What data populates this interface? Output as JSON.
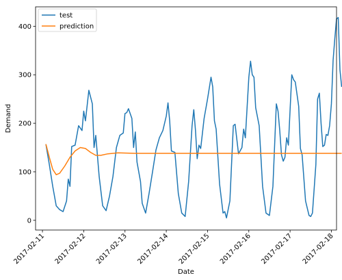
{
  "chart_data": {
    "type": "line",
    "xlabel": "Date",
    "ylabel": "Demand",
    "xlim": [
      "2017-02-10T20:00",
      "2017-02-18T03:00"
    ],
    "ylim": [
      -20,
      440
    ],
    "x_ticks": [
      "2017-02-11",
      "2017-02-12",
      "2017-02-13",
      "2017-02-14",
      "2017-02-15",
      "2017-02-16",
      "2017-02-17",
      "2017-02-18"
    ],
    "y_ticks": [
      0,
      100,
      200,
      300,
      400
    ],
    "grid": false,
    "legend_position": "top-left",
    "series": [
      {
        "name": "test",
        "color": "#1f77b4",
        "points": [
          [
            "2017-02-11T02:00",
            157
          ],
          [
            "2017-02-11T04:00",
            115
          ],
          [
            "2017-02-11T06:00",
            70
          ],
          [
            "2017-02-11T08:00",
            30
          ],
          [
            "2017-02-11T10:00",
            22
          ],
          [
            "2017-02-11T12:00",
            18
          ],
          [
            "2017-02-11T14:00",
            40
          ],
          [
            "2017-02-11T15:00",
            85
          ],
          [
            "2017-02-11T16:00",
            70
          ],
          [
            "2017-02-11T17:00",
            152
          ],
          [
            "2017-02-11T19:00",
            155
          ],
          [
            "2017-02-11T21:00",
            195
          ],
          [
            "2017-02-11T23:00",
            185
          ],
          [
            "2017-02-12T00:00",
            225
          ],
          [
            "2017-02-12T01:00",
            205
          ],
          [
            "2017-02-12T03:00",
            268
          ],
          [
            "2017-02-12T05:00",
            240
          ],
          [
            "2017-02-12T06:00",
            150
          ],
          [
            "2017-02-12T07:00",
            175
          ],
          [
            "2017-02-12T09:00",
            90
          ],
          [
            "2017-02-12T11:00",
            30
          ],
          [
            "2017-02-12T13:00",
            20
          ],
          [
            "2017-02-12T15:00",
            50
          ],
          [
            "2017-02-12T17:00",
            90
          ],
          [
            "2017-02-12T19:00",
            150
          ],
          [
            "2017-02-12T21:00",
            175
          ],
          [
            "2017-02-12T23:00",
            180
          ],
          [
            "2017-02-13T00:00",
            220
          ],
          [
            "2017-02-13T01:00",
            222
          ],
          [
            "2017-02-13T02:00",
            230
          ],
          [
            "2017-02-13T04:00",
            210
          ],
          [
            "2017-02-13T05:00",
            150
          ],
          [
            "2017-02-13T06:00",
            182
          ],
          [
            "2017-02-13T07:00",
            120
          ],
          [
            "2017-02-13T09:00",
            80
          ],
          [
            "2017-02-13T10:00",
            35
          ],
          [
            "2017-02-13T12:00",
            15
          ],
          [
            "2017-02-13T14:00",
            55
          ],
          [
            "2017-02-13T16:00",
            100
          ],
          [
            "2017-02-13T18:00",
            145
          ],
          [
            "2017-02-13T20:00",
            170
          ],
          [
            "2017-02-13T22:00",
            185
          ],
          [
            "2017-02-14T00:00",
            215
          ],
          [
            "2017-02-14T01:00",
            242
          ],
          [
            "2017-02-14T02:00",
            205
          ],
          [
            "2017-02-14T03:00",
            143
          ],
          [
            "2017-02-14T05:00",
            140
          ],
          [
            "2017-02-14T07:00",
            55
          ],
          [
            "2017-02-14T09:00",
            15
          ],
          [
            "2017-02-14T11:00",
            8
          ],
          [
            "2017-02-14T13:00",
            80
          ],
          [
            "2017-02-14T15:00",
            195
          ],
          [
            "2017-02-14T16:00",
            228
          ],
          [
            "2017-02-14T17:00",
            185
          ],
          [
            "2017-02-14T18:00",
            127
          ],
          [
            "2017-02-14T19:00",
            155
          ],
          [
            "2017-02-14T20:00",
            148
          ],
          [
            "2017-02-14T22:00",
            210
          ],
          [
            "2017-02-15T00:00",
            250
          ],
          [
            "2017-02-15T02:00",
            295
          ],
          [
            "2017-02-15T03:00",
            275
          ],
          [
            "2017-02-15T04:00",
            205
          ],
          [
            "2017-02-15T05:00",
            188
          ],
          [
            "2017-02-15T07:00",
            75
          ],
          [
            "2017-02-15T09:00",
            15
          ],
          [
            "2017-02-15T10:00",
            18
          ],
          [
            "2017-02-15T11:00",
            5
          ],
          [
            "2017-02-15T13:00",
            40
          ],
          [
            "2017-02-15T15:00",
            195
          ],
          [
            "2017-02-15T16:00",
            198
          ],
          [
            "2017-02-15T18:00",
            137
          ],
          [
            "2017-02-15T20:00",
            150
          ],
          [
            "2017-02-15T21:00",
            188
          ],
          [
            "2017-02-15T22:00",
            170
          ],
          [
            "2017-02-16T00:00",
            295
          ],
          [
            "2017-02-16T01:00",
            328
          ],
          [
            "2017-02-16T02:00",
            300
          ],
          [
            "2017-02-16T03:00",
            295
          ],
          [
            "2017-02-16T04:00",
            232
          ],
          [
            "2017-02-16T06:00",
            195
          ],
          [
            "2017-02-16T08:00",
            70
          ],
          [
            "2017-02-16T10:00",
            15
          ],
          [
            "2017-02-16T12:00",
            10
          ],
          [
            "2017-02-16T14:00",
            70
          ],
          [
            "2017-02-16T16:00",
            240
          ],
          [
            "2017-02-16T17:00",
            225
          ],
          [
            "2017-02-16T18:00",
            185
          ],
          [
            "2017-02-16T19:00",
            135
          ],
          [
            "2017-02-16T20:00",
            122
          ],
          [
            "2017-02-16T21:00",
            130
          ],
          [
            "2017-02-16T22:00",
            170
          ],
          [
            "2017-02-16T23:00",
            155
          ],
          [
            "2017-02-17T01:00",
            300
          ],
          [
            "2017-02-17T02:00",
            290
          ],
          [
            "2017-02-17T03:00",
            285
          ],
          [
            "2017-02-17T05:00",
            235
          ],
          [
            "2017-02-17T06:00",
            148
          ],
          [
            "2017-02-17T07:00",
            135
          ],
          [
            "2017-02-17T09:00",
            40
          ],
          [
            "2017-02-17T11:00",
            10
          ],
          [
            "2017-02-17T12:00",
            8
          ],
          [
            "2017-02-17T13:00",
            15
          ],
          [
            "2017-02-17T15:00",
            115
          ],
          [
            "2017-02-17T16:00",
            250
          ],
          [
            "2017-02-17T17:00",
            262
          ],
          [
            "2017-02-17T18:00",
            200
          ],
          [
            "2017-02-17T19:00",
            152
          ],
          [
            "2017-02-17T20:00",
            155
          ],
          [
            "2017-02-17T21:00",
            177
          ],
          [
            "2017-02-17T22:00",
            175
          ],
          [
            "2017-02-17T23:00",
            195
          ],
          [
            "2017-02-18T00:00",
            240
          ],
          [
            "2017-02-18T01:00",
            330
          ],
          [
            "2017-02-18T02:00",
            375
          ],
          [
            "2017-02-18T03:00",
            415
          ],
          [
            "2017-02-18T04:00",
            418
          ],
          [
            "2017-02-18T05:00",
            310
          ],
          [
            "2017-02-18T06:00",
            275
          ]
        ]
      },
      {
        "name": "prediction",
        "color": "#ff7f0e",
        "points": [
          [
            "2017-02-11T02:00",
            157
          ],
          [
            "2017-02-11T04:00",
            130
          ],
          [
            "2017-02-11T06:00",
            105
          ],
          [
            "2017-02-11T08:00",
            94
          ],
          [
            "2017-02-11T10:00",
            97
          ],
          [
            "2017-02-11T13:00",
            112
          ],
          [
            "2017-02-11T16:00",
            130
          ],
          [
            "2017-02-11T19:00",
            143
          ],
          [
            "2017-02-11T22:00",
            150
          ],
          [
            "2017-02-12T01:00",
            148
          ],
          [
            "2017-02-12T04:00",
            140
          ],
          [
            "2017-02-12T07:00",
            134
          ],
          [
            "2017-02-12T10:00",
            134
          ],
          [
            "2017-02-12T14:00",
            137
          ],
          [
            "2017-02-12T20:00",
            139
          ],
          [
            "2017-02-13T06:00",
            138
          ],
          [
            "2017-02-14T00:00",
            138
          ],
          [
            "2017-02-18T06:00",
            138
          ]
        ]
      }
    ]
  }
}
